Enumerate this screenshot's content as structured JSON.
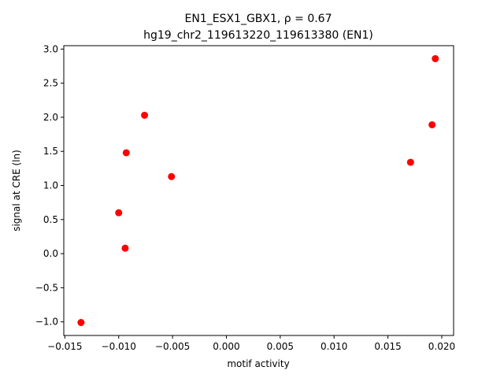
{
  "chart_data": {
    "type": "scatter",
    "title": "EN1_ESX1_GBX1, ρ = 0.67",
    "subtitle": "hg19_chr2_119613220_119613380 (EN1)",
    "x_label": "motif activity",
    "y_label": "signal at CRE (ln)",
    "color": "#ff0000",
    "x": [
      -0.0135,
      -0.01,
      -0.0094,
      -0.0093,
      -0.0076,
      -0.0051,
      0.0171,
      0.0191,
      0.0194
    ],
    "values": [
      -1.01,
      0.6,
      0.08,
      1.48,
      2.03,
      1.13,
      1.34,
      1.89,
      2.86
    ],
    "xlim": [
      -0.0151,
      0.0211
    ],
    "ylim": [
      -1.2,
      3.05
    ],
    "xticks": [
      {
        "value": -0.015,
        "label": "−0.015"
      },
      {
        "value": -0.01,
        "label": "−0.010"
      },
      {
        "value": -0.005,
        "label": "−0.005"
      },
      {
        "value": 0,
        "label": "0.000"
      },
      0.005,
      {
        "value": 0.01,
        "label": "0.010"
      },
      0.015,
      {
        "value": 0.02,
        "label": "0.020"
      }
    ],
    "yticks": [
      {
        "value": -1,
        "label": "−1.0"
      },
      {
        "value": -0.5,
        "label": "−0.5"
      },
      {
        "value": 0,
        "label": "0.0"
      },
      0.5,
      {
        "value": 1,
        "label": "1.0"
      },
      1.5,
      {
        "value": 2,
        "label": "2.0"
      },
      2.5,
      {
        "value": 3,
        "label": "3.0"
      }
    ]
  }
}
